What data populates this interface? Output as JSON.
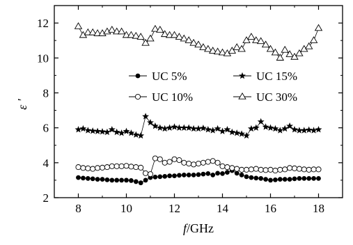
{
  "chart_data": {
    "type": "line",
    "xlabel": {
      "italic": "f",
      "rest": "/GHz"
    },
    "ylabel": "ε ′",
    "xlim": [
      7,
      19
    ],
    "ylim": [
      2,
      13
    ],
    "xticks": [
      "8",
      "10",
      "12",
      "14",
      "16",
      "18"
    ],
    "yticks": [
      "2",
      "4",
      "6",
      "8",
      "10",
      "12"
    ],
    "legend_placement": "center",
    "series": [
      {
        "name": "UC 5%",
        "marker": "filled-circle",
        "x": [
          8.0,
          8.2,
          8.4,
          8.6,
          8.8,
          9.0,
          9.2,
          9.4,
          9.6,
          9.8,
          10.0,
          10.2,
          10.4,
          10.6,
          10.8,
          11.0,
          11.2,
          11.4,
          11.6,
          11.8,
          12.0,
          12.2,
          12.4,
          12.6,
          12.8,
          13.0,
          13.2,
          13.4,
          13.6,
          13.8,
          14.0,
          14.2,
          14.4,
          14.6,
          14.8,
          15.0,
          15.2,
          15.4,
          15.6,
          15.8,
          16.0,
          16.2,
          16.4,
          16.6,
          16.8,
          17.0,
          17.2,
          17.4,
          17.6,
          17.8,
          18.0
        ],
        "y": [
          3.15,
          3.12,
          3.1,
          3.08,
          3.05,
          3.05,
          3.02,
          3.0,
          3.0,
          3.0,
          3.0,
          2.98,
          2.92,
          2.85,
          3.0,
          3.15,
          3.18,
          3.2,
          3.22,
          3.25,
          3.25,
          3.28,
          3.3,
          3.3,
          3.3,
          3.32,
          3.35,
          3.38,
          3.3,
          3.4,
          3.38,
          3.45,
          3.55,
          3.4,
          3.3,
          3.2,
          3.15,
          3.12,
          3.1,
          3.05,
          3.0,
          3.02,
          3.05,
          3.05,
          3.05,
          3.08,
          3.1,
          3.1,
          3.1,
          3.1,
          3.1
        ]
      },
      {
        "name": "UC 10%",
        "marker": "open-circle",
        "x": [
          8.0,
          8.2,
          8.4,
          8.6,
          8.8,
          9.0,
          9.2,
          9.4,
          9.6,
          9.8,
          10.0,
          10.2,
          10.4,
          10.6,
          10.8,
          11.0,
          11.2,
          11.4,
          11.6,
          11.8,
          12.0,
          12.2,
          12.4,
          12.6,
          12.8,
          13.0,
          13.2,
          13.4,
          13.6,
          13.8,
          14.0,
          14.2,
          14.4,
          14.6,
          14.8,
          15.0,
          15.2,
          15.4,
          15.6,
          15.8,
          16.0,
          16.2,
          16.4,
          16.6,
          16.8,
          17.0,
          17.2,
          17.4,
          17.6,
          17.8,
          18.0
        ],
        "y": [
          3.75,
          3.7,
          3.68,
          3.65,
          3.7,
          3.72,
          3.75,
          3.8,
          3.8,
          3.8,
          3.82,
          3.78,
          3.75,
          3.72,
          3.4,
          3.35,
          4.25,
          4.2,
          4.0,
          4.05,
          4.2,
          4.15,
          4.0,
          3.95,
          3.9,
          3.95,
          4.0,
          4.05,
          4.1,
          4.0,
          3.8,
          3.75,
          3.7,
          3.65,
          3.6,
          3.6,
          3.62,
          3.65,
          3.6,
          3.58,
          3.6,
          3.55,
          3.6,
          3.62,
          3.7,
          3.68,
          3.65,
          3.62,
          3.6,
          3.62,
          3.62
        ]
      },
      {
        "name": "UC 15%",
        "marker": "filled-star",
        "x": [
          8.0,
          8.2,
          8.4,
          8.6,
          8.8,
          9.0,
          9.2,
          9.4,
          9.6,
          9.8,
          10.0,
          10.2,
          10.4,
          10.6,
          10.8,
          11.0,
          11.2,
          11.4,
          11.6,
          11.8,
          12.0,
          12.2,
          12.4,
          12.6,
          12.8,
          13.0,
          13.2,
          13.4,
          13.6,
          13.8,
          14.0,
          14.2,
          14.4,
          14.6,
          14.8,
          15.0,
          15.2,
          15.4,
          15.6,
          15.8,
          16.0,
          16.2,
          16.4,
          16.6,
          16.8,
          17.0,
          17.2,
          17.4,
          17.6,
          17.8,
          18.0
        ],
        "y": [
          5.9,
          5.95,
          5.85,
          5.82,
          5.8,
          5.78,
          5.75,
          5.9,
          5.75,
          5.7,
          5.8,
          5.7,
          5.6,
          5.55,
          6.65,
          6.3,
          6.1,
          6.0,
          5.95,
          6.0,
          6.05,
          6.0,
          6.0,
          6.0,
          5.95,
          5.95,
          5.98,
          5.9,
          5.85,
          5.95,
          5.8,
          5.9,
          5.75,
          5.7,
          5.65,
          5.55,
          5.95,
          6.0,
          6.35,
          6.05,
          6.0,
          5.95,
          5.85,
          5.95,
          6.1,
          5.9,
          5.85,
          5.85,
          5.88,
          5.85,
          5.9
        ]
      },
      {
        "name": "UC 30%",
        "marker": "open-triangle",
        "x": [
          8.0,
          8.2,
          8.4,
          8.6,
          8.8,
          9.0,
          9.2,
          9.4,
          9.6,
          9.8,
          10.0,
          10.2,
          10.4,
          10.6,
          10.8,
          11.0,
          11.2,
          11.4,
          11.6,
          11.8,
          12.0,
          12.2,
          12.4,
          12.6,
          12.8,
          13.0,
          13.2,
          13.4,
          13.6,
          13.8,
          14.0,
          14.2,
          14.4,
          14.6,
          14.8,
          15.0,
          15.2,
          15.4,
          15.6,
          15.8,
          16.0,
          16.2,
          16.4,
          16.6,
          16.8,
          17.0,
          17.2,
          17.4,
          17.6,
          17.8,
          18.0
        ],
        "y": [
          11.8,
          11.3,
          11.45,
          11.45,
          11.4,
          11.4,
          11.5,
          11.6,
          11.5,
          11.5,
          11.3,
          11.3,
          11.25,
          11.2,
          10.85,
          11.1,
          11.65,
          11.6,
          11.35,
          11.3,
          11.3,
          11.2,
          11.1,
          11.0,
          10.85,
          10.75,
          10.6,
          10.5,
          10.4,
          10.35,
          10.3,
          10.25,
          10.4,
          10.6,
          10.5,
          11.0,
          11.2,
          11.0,
          10.95,
          10.75,
          10.5,
          10.3,
          10.0,
          10.45,
          10.2,
          10.05,
          10.25,
          10.5,
          10.65,
          11.0,
          11.7
        ]
      }
    ]
  }
}
